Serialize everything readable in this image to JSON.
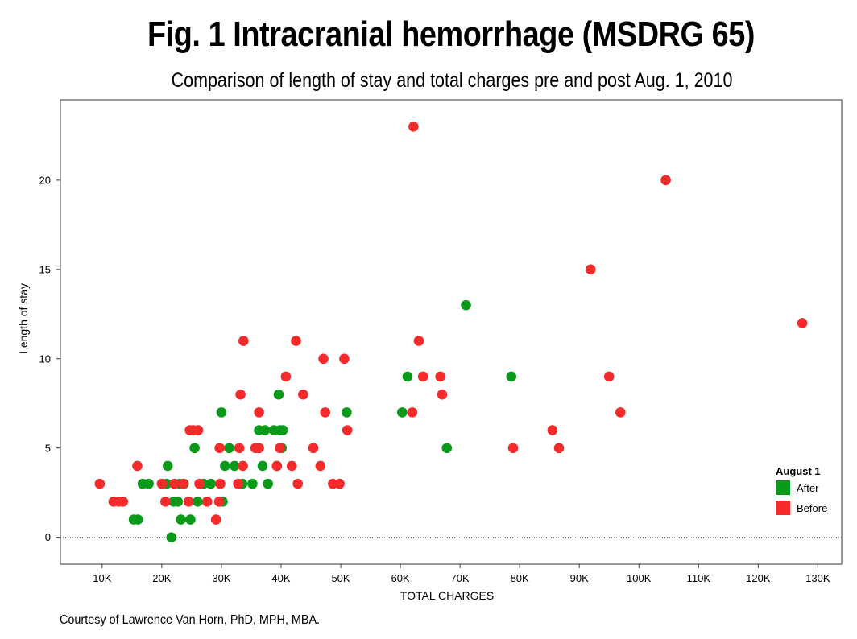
{
  "figure": {
    "title": "Fig. 1 Intracranial hemorrhage (MSDRG 65)",
    "subtitle": "Comparison of length of stay and total charges pre and post Aug. 1, 2010",
    "credit": "Courtesy of Lawrence Van Horn, PhD, MPH, MBA."
  },
  "chart_data": {
    "type": "scatter",
    "title": "Fig. 1 Intracranial hemorrhage (MSDRG 65)",
    "subtitle": "Comparison of length of stay and total charges pre and post Aug. 1, 2010",
    "xlabel": "TOTAL CHARGES",
    "ylabel": "Length of stay",
    "xlim": [
      3000,
      134000
    ],
    "ylim": [
      -1.5,
      24.5
    ],
    "x_ticks": [
      10000,
      20000,
      30000,
      40000,
      50000,
      60000,
      70000,
      80000,
      90000,
      100000,
      110000,
      120000,
      130000
    ],
    "x_tick_labels": [
      "10K",
      "20K",
      "30K",
      "40K",
      "50K",
      "60K",
      "70K",
      "80K",
      "90K",
      "100K",
      "110K",
      "120K",
      "130K"
    ],
    "y_ticks": [
      0,
      5,
      10,
      15,
      20
    ],
    "y_tick_labels": [
      "0",
      "5",
      "10",
      "15",
      "20"
    ],
    "reference_line": {
      "y": 0,
      "style": "dotted"
    },
    "grid": false,
    "legend": {
      "title": "August 1",
      "placement": "right"
    },
    "series": [
      {
        "name": "After",
        "color": "#0a9a1a",
        "points": [
          [
            15300,
            1
          ],
          [
            16000,
            1
          ],
          [
            16800,
            3
          ],
          [
            17800,
            3
          ],
          [
            20800,
            3
          ],
          [
            21000,
            4
          ],
          [
            21600,
            0
          ],
          [
            22000,
            2
          ],
          [
            22700,
            2
          ],
          [
            23000,
            3
          ],
          [
            23200,
            1
          ],
          [
            23700,
            3
          ],
          [
            24800,
            1
          ],
          [
            25500,
            5
          ],
          [
            26000,
            2
          ],
          [
            27000,
            3
          ],
          [
            28200,
            3
          ],
          [
            30000,
            7
          ],
          [
            30200,
            2
          ],
          [
            30600,
            4
          ],
          [
            31300,
            5
          ],
          [
            32200,
            4
          ],
          [
            33500,
            3
          ],
          [
            35200,
            3
          ],
          [
            36300,
            6
          ],
          [
            36900,
            4
          ],
          [
            37300,
            6
          ],
          [
            37800,
            3
          ],
          [
            38800,
            6
          ],
          [
            39300,
            4
          ],
          [
            39600,
            8
          ],
          [
            39800,
            6
          ],
          [
            40100,
            5
          ],
          [
            40300,
            6
          ],
          [
            51000,
            7
          ],
          [
            60300,
            7
          ],
          [
            61200,
            9
          ],
          [
            67800,
            5
          ],
          [
            71000,
            13
          ],
          [
            78600,
            9
          ]
        ]
      },
      {
        "name": "Before",
        "color": "#f52a2a",
        "points": [
          [
            9600,
            3
          ],
          [
            11900,
            2
          ],
          [
            12800,
            2
          ],
          [
            13500,
            2
          ],
          [
            15900,
            4
          ],
          [
            20000,
            3
          ],
          [
            20600,
            2
          ],
          [
            22100,
            3
          ],
          [
            23600,
            3
          ],
          [
            24500,
            2
          ],
          [
            24700,
            6
          ],
          [
            25300,
            6
          ],
          [
            26100,
            6
          ],
          [
            26300,
            3
          ],
          [
            27600,
            2
          ],
          [
            29100,
            1
          ],
          [
            29600,
            2
          ],
          [
            29700,
            5
          ],
          [
            29800,
            3
          ],
          [
            32800,
            3
          ],
          [
            33000,
            5
          ],
          [
            33200,
            8
          ],
          [
            33600,
            4
          ],
          [
            33700,
            11
          ],
          [
            35700,
            5
          ],
          [
            36300,
            7
          ],
          [
            36300,
            5
          ],
          [
            39300,
            4
          ],
          [
            39800,
            5
          ],
          [
            40800,
            9
          ],
          [
            41800,
            4
          ],
          [
            42500,
            11
          ],
          [
            42800,
            3
          ],
          [
            43700,
            8
          ],
          [
            45400,
            5
          ],
          [
            46600,
            4
          ],
          [
            47100,
            10
          ],
          [
            47400,
            7
          ],
          [
            48700,
            3
          ],
          [
            49800,
            3
          ],
          [
            50600,
            10
          ],
          [
            51100,
            6
          ],
          [
            62000,
            7
          ],
          [
            62200,
            23
          ],
          [
            63100,
            11
          ],
          [
            63800,
            9
          ],
          [
            66700,
            9
          ],
          [
            67000,
            8
          ],
          [
            78900,
            5
          ],
          [
            85500,
            6
          ],
          [
            86600,
            5
          ],
          [
            91900,
            15
          ],
          [
            95000,
            9
          ],
          [
            96900,
            7
          ],
          [
            104500,
            20
          ],
          [
            127400,
            12
          ]
        ]
      }
    ]
  }
}
